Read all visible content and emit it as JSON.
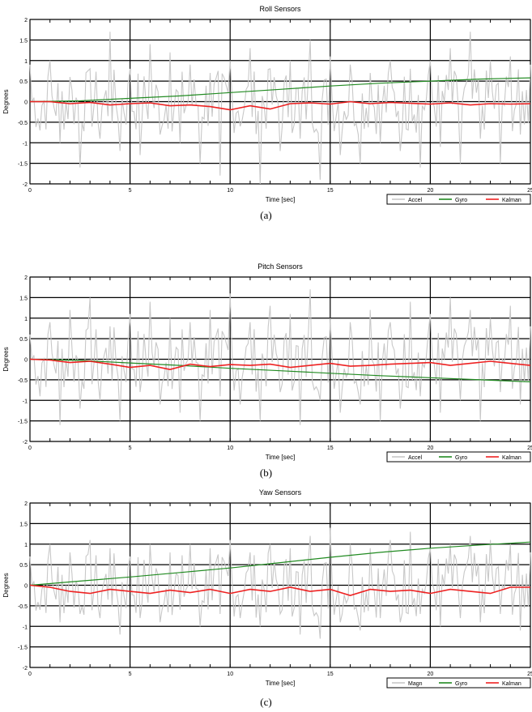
{
  "charts": [
    {
      "caption": "(a)",
      "chart_data": {
        "type": "line",
        "title": "Roll Sensors",
        "xlabel": "Time [sec]",
        "ylabel": "Degrees",
        "xlim": [
          0,
          25
        ],
        "ylim": [
          -2,
          2
        ],
        "xticks": [
          "0",
          "5",
          "10",
          "15",
          "20",
          "25"
        ],
        "yticks": [
          "-2",
          "-1.5",
          "-1",
          "-0.5",
          "0",
          "0.5",
          "1",
          "1.5",
          "2"
        ],
        "grid": true,
        "legend_position": "bottom-right, below axes",
        "series": [
          {
            "name": "Accel",
            "color": "#c8c8c8",
            "description": "high-frequency noise around 0",
            "x": [
              0,
              0.5,
              1,
              1.5,
              2,
              2.5,
              3,
              3.5,
              4,
              4.5,
              5,
              5.5,
              6,
              6.5,
              7,
              7.5,
              8,
              8.5,
              9,
              9.5,
              10,
              10.5,
              11,
              11.5,
              12,
              12.5,
              13,
              13.5,
              14,
              14.5,
              15,
              15.5,
              16,
              16.5,
              17,
              17.5,
              18,
              18.5,
              19,
              19.5,
              20,
              20.5,
              21,
              21.5,
              22,
              22.5,
              23,
              23.5,
              24,
              24.5,
              25
            ],
            "y": [
              0.9,
              -0.7,
              1.0,
              -1.0,
              0.6,
              -1.6,
              0.8,
              -0.9,
              1.7,
              -1.2,
              0.8,
              -1.3,
              1.4,
              -0.8,
              1.2,
              -1.0,
              0.9,
              -1.5,
              0.7,
              -1.8,
              1.0,
              -0.6,
              1.3,
              -2.0,
              0.8,
              -1.2,
              1.0,
              -0.9,
              1.5,
              -1.9,
              1.1,
              -1.3,
              0.9,
              -1.5,
              0.7,
              -1.0,
              1.0,
              -1.2,
              0.8,
              -1.6,
              1.0,
              -1.1,
              1.3,
              -1.5,
              1.7,
              -0.9,
              1.0,
              -1.5,
              1.1,
              -0.8,
              0.9
            ]
          },
          {
            "name": "Gyro",
            "color": "#228b22",
            "x": [
              0,
              2.5,
              5,
              7.5,
              10,
              12.5,
              15,
              17.5,
              20,
              22.5,
              25
            ],
            "y": [
              0,
              0.02,
              0.08,
              0.14,
              0.22,
              0.3,
              0.38,
              0.45,
              0.5,
              0.55,
              0.58
            ]
          },
          {
            "name": "Kalman",
            "color": "#ee2222",
            "x": [
              0,
              1,
              2,
              3,
              4,
              5,
              6,
              7,
              8,
              9,
              10,
              11,
              12,
              13,
              14,
              15,
              16,
              17,
              18,
              19,
              20,
              21,
              22,
              23,
              24,
              25
            ],
            "y": [
              0,
              0,
              -0.05,
              -0.02,
              -0.08,
              -0.05,
              -0.03,
              -0.1,
              -0.08,
              -0.12,
              -0.2,
              -0.1,
              -0.18,
              -0.05,
              -0.03,
              -0.06,
              0,
              -0.05,
              -0.02,
              -0.04,
              -0.06,
              -0.03,
              -0.08,
              -0.05,
              -0.06,
              -0.05
            ]
          }
        ]
      }
    },
    {
      "caption": "(b)",
      "chart_data": {
        "type": "line",
        "title": "Pitch Sensors",
        "xlabel": "Time [sec]",
        "ylabel": "Degrees",
        "xlim": [
          0,
          25
        ],
        "ylim": [
          -2,
          2
        ],
        "xticks": [
          "0",
          "5",
          "10",
          "15",
          "20",
          "25"
        ],
        "yticks": [
          "-2",
          "-1.5",
          "-1",
          "-0.5",
          "0",
          "0.5",
          "1",
          "1.5",
          "2"
        ],
        "grid": true,
        "legend_position": "bottom-right, below axes",
        "series": [
          {
            "name": "Accel",
            "color": "#c8c8c8",
            "description": "high-frequency noise around 0",
            "x": [
              0,
              0.5,
              1,
              1.5,
              2,
              2.5,
              3,
              3.5,
              4,
              4.5,
              5,
              5.5,
              6,
              6.5,
              7,
              7.5,
              8,
              8.5,
              9,
              9.5,
              10,
              10.5,
              11,
              11.5,
              12,
              12.5,
              13,
              13.5,
              14,
              14.5,
              15,
              15.5,
              16,
              16.5,
              17,
              17.5,
              18,
              18.5,
              19,
              19.5,
              20,
              20.5,
              21,
              21.5,
              22,
              22.5,
              23,
              23.5,
              24,
              24.5,
              25
            ],
            "y": [
              0.6,
              -0.9,
              0.9,
              -1.6,
              1.2,
              -1.2,
              1.5,
              -1.0,
              0.8,
              -1.5,
              1.1,
              -0.8,
              1.4,
              -1.1,
              1.0,
              -1.3,
              0.9,
              -1.5,
              1.2,
              -0.9,
              1.6,
              -1.1,
              0.9,
              -1.5,
              1.3,
              -0.8,
              1.1,
              -1.6,
              1.7,
              -1.0,
              1.0,
              -1.3,
              0.9,
              -1.1,
              1.2,
              -1.5,
              0.9,
              -1.2,
              1.4,
              -0.9,
              1.1,
              -1.3,
              1.5,
              -1.0,
              1.2,
              -1.5,
              1.0,
              -0.8,
              1.3,
              -1.1,
              0.8
            ]
          },
          {
            "name": "Gyro",
            "color": "#228b22",
            "x": [
              0,
              2.5,
              5,
              7.5,
              10,
              12.5,
              15,
              17.5,
              20,
              22.5,
              25
            ],
            "y": [
              0,
              -0.03,
              -0.09,
              -0.15,
              -0.22,
              -0.28,
              -0.34,
              -0.4,
              -0.45,
              -0.5,
              -0.55
            ]
          },
          {
            "name": "Kalman",
            "color": "#ee2222",
            "x": [
              0,
              1,
              2,
              3,
              4,
              5,
              6,
              7,
              8,
              9,
              10,
              11,
              12,
              13,
              14,
              15,
              16,
              17,
              18,
              19,
              20,
              21,
              22,
              23,
              24,
              25
            ],
            "y": [
              0,
              -0.02,
              -0.08,
              -0.05,
              -0.12,
              -0.2,
              -0.15,
              -0.25,
              -0.12,
              -0.18,
              -0.13,
              -0.15,
              -0.12,
              -0.2,
              -0.15,
              -0.1,
              -0.17,
              -0.15,
              -0.12,
              -0.1,
              -0.08,
              -0.15,
              -0.1,
              -0.05,
              -0.1,
              -0.15
            ]
          }
        ]
      }
    },
    {
      "caption": "(c)",
      "chart_data": {
        "type": "line",
        "title": "Yaw Sensors",
        "xlabel": "Time [sec]",
        "ylabel": "Degrees",
        "xlim": [
          0,
          25
        ],
        "ylim": [
          -2,
          2
        ],
        "xticks": [
          "0",
          "5",
          "10",
          "15",
          "20",
          "25"
        ],
        "yticks": [
          "-2",
          "-1.5",
          "-1",
          "-0.5",
          "0",
          "0.5",
          "1",
          "1.5",
          "2"
        ],
        "grid": true,
        "legend_position": "bottom-right, below axes",
        "series": [
          {
            "name": "Magn",
            "color": "#c8c8c8",
            "description": "high-frequency noise around 0",
            "x": [
              0,
              0.5,
              1,
              1.5,
              2,
              2.5,
              3,
              3.5,
              4,
              4.5,
              5,
              5.5,
              6,
              6.5,
              7,
              7.5,
              8,
              8.5,
              9,
              9.5,
              10,
              10.5,
              11,
              11.5,
              12,
              12.5,
              13,
              13.5,
              14,
              14.5,
              15,
              15.5,
              16,
              16.5,
              17,
              17.5,
              18,
              18.5,
              19,
              19.5,
              20,
              20.5,
              21,
              21.5,
              22,
              22.5,
              23,
              23.5,
              24,
              24.5,
              25
            ],
            "y": [
              0.7,
              -0.6,
              1.0,
              -0.9,
              0.8,
              -0.7,
              1.1,
              -0.8,
              0.9,
              -1.2,
              0.7,
              -0.8,
              1.0,
              -0.9,
              0.8,
              -0.6,
              1.0,
              -1.0,
              0.9,
              -0.7,
              1.1,
              -0.8,
              0.8,
              -1.0,
              1.0,
              -0.7,
              0.9,
              -1.2,
              1.2,
              -1.3,
              1.4,
              -0.9,
              1.0,
              -1.1,
              0.9,
              -0.8,
              1.1,
              -0.9,
              1.3,
              -0.7,
              0.9,
              -1.0,
              1.0,
              -0.8,
              1.2,
              -0.9,
              1.1,
              -0.7,
              1.0,
              -1.1,
              0.8
            ]
          },
          {
            "name": "Gyro",
            "color": "#228b22",
            "x": [
              0,
              2.5,
              5,
              7.5,
              10,
              12.5,
              15,
              17.5,
              20,
              22.5,
              25
            ],
            "y": [
              0,
              0.1,
              0.2,
              0.31,
              0.42,
              0.55,
              0.68,
              0.8,
              0.9,
              0.98,
              1.05
            ]
          },
          {
            "name": "Kalman",
            "color": "#ee2222",
            "x": [
              0,
              1,
              2,
              3,
              4,
              5,
              6,
              7,
              8,
              9,
              10,
              11,
              12,
              13,
              14,
              15,
              16,
              17,
              18,
              19,
              20,
              21,
              22,
              23,
              24,
              25
            ],
            "y": [
              0,
              -0.05,
              -0.15,
              -0.2,
              -0.1,
              -0.15,
              -0.2,
              -0.12,
              -0.18,
              -0.1,
              -0.2,
              -0.1,
              -0.15,
              -0.05,
              -0.15,
              -0.1,
              -0.25,
              -0.1,
              -0.15,
              -0.12,
              -0.2,
              -0.1,
              -0.15,
              -0.2,
              -0.05,
              -0.05
            ]
          }
        ]
      }
    }
  ]
}
